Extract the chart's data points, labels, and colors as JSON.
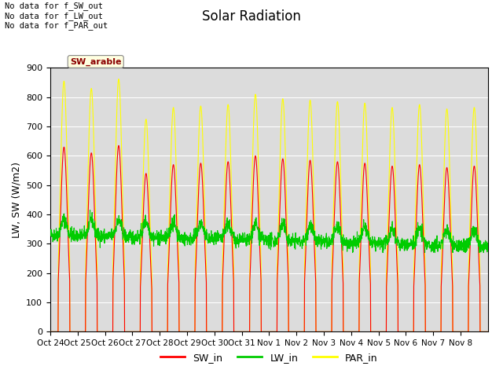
{
  "title": "Solar Radiation",
  "ylabel": "LW, SW (W/m2)",
  "ylim": [
    0,
    900
  ],
  "yticks": [
    0,
    100,
    200,
    300,
    400,
    500,
    600,
    700,
    800,
    900
  ],
  "x_tick_labels": [
    "Oct 24",
    "Oct 25",
    "Oct 26",
    "Oct 27",
    "Oct 28",
    "Oct 29",
    "Oct 30",
    "Oct 31",
    "Nov 1",
    "Nov 2",
    "Nov 3",
    "Nov 4",
    "Nov 5",
    "Nov 6",
    "Nov 7",
    "Nov 8"
  ],
  "num_days": 16,
  "sw_color": "#ff0000",
  "lw_color": "#00cc00",
  "par_color": "#ffff00",
  "bg_color": "#dcdcdc",
  "annotation_text": "No data for f_SW_out\nNo data for f_LW_out\nNo data for f_PAR_out",
  "tooltip_text": "SW_arable",
  "legend_labels": [
    "SW_in",
    "LW_in",
    "PAR_in"
  ],
  "legend_colors": [
    "#ff0000",
    "#00cc00",
    "#ffff00"
  ]
}
